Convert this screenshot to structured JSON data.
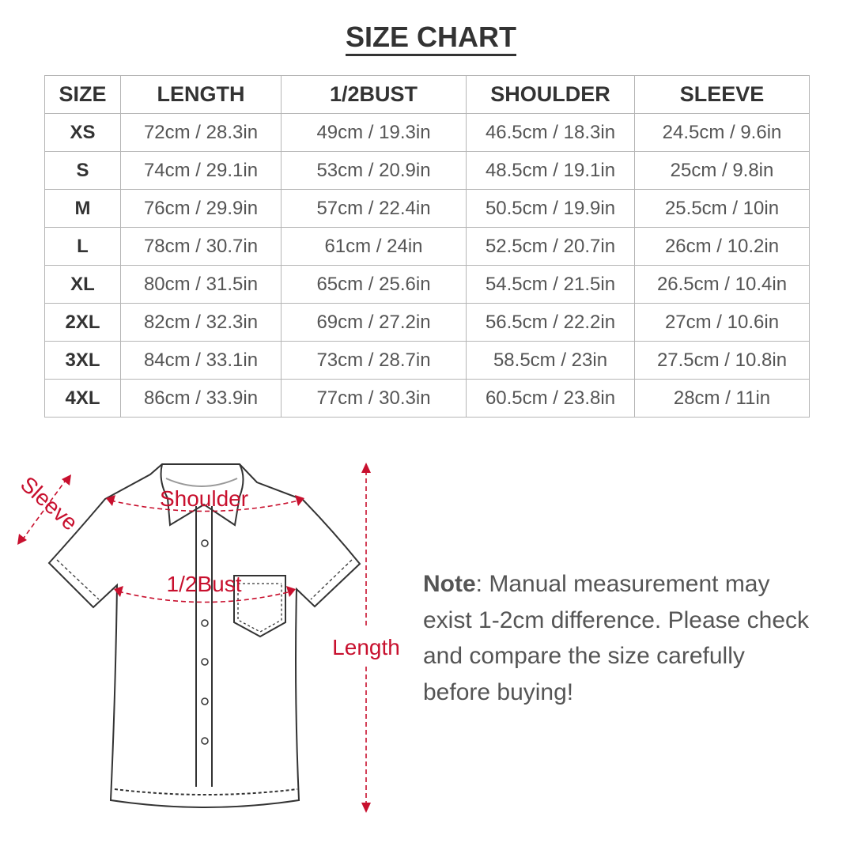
{
  "title": "SIZE CHART",
  "table": {
    "headers": [
      "SIZE",
      "LENGTH",
      "1/2BUST",
      "SHOULDER",
      "SLEEVE"
    ],
    "rows": [
      [
        "XS",
        "72cm / 28.3in",
        "49cm / 19.3in",
        "46.5cm / 18.3in",
        "24.5cm / 9.6in"
      ],
      [
        "S",
        "74cm / 29.1in",
        "53cm / 20.9in",
        "48.5cm / 19.1in",
        "25cm / 9.8in"
      ],
      [
        "M",
        "76cm / 29.9in",
        "57cm / 22.4in",
        "50.5cm / 19.9in",
        "25.5cm / 10in"
      ],
      [
        "L",
        "78cm / 30.7in",
        "61cm / 24in",
        "52.5cm / 20.7in",
        "26cm / 10.2in"
      ],
      [
        "XL",
        "80cm / 31.5in",
        "65cm / 25.6in",
        "54.5cm / 21.5in",
        "26.5cm / 10.4in"
      ],
      [
        "2XL",
        "82cm / 32.3in",
        "69cm / 27.2in",
        "56.5cm / 22.2in",
        "27cm / 10.6in"
      ],
      [
        "3XL",
        "84cm / 33.1in",
        "73cm / 28.7in",
        "58.5cm / 23in",
        "27.5cm / 10.8in"
      ],
      [
        "4XL",
        "86cm / 33.9in",
        "77cm / 30.3in",
        "60.5cm / 23.8in",
        "28cm / 11in"
      ]
    ]
  },
  "diagram": {
    "labels": {
      "sleeve": "Sleeve",
      "shoulder": "Shoulder",
      "bust": "1/2Bust",
      "length": "Length"
    },
    "accent_color": "#c8102e"
  },
  "note": {
    "label": "Note",
    "text": ": Manual measurement may exist 1-2cm difference. Please check and compare the size carefully before buying!"
  }
}
